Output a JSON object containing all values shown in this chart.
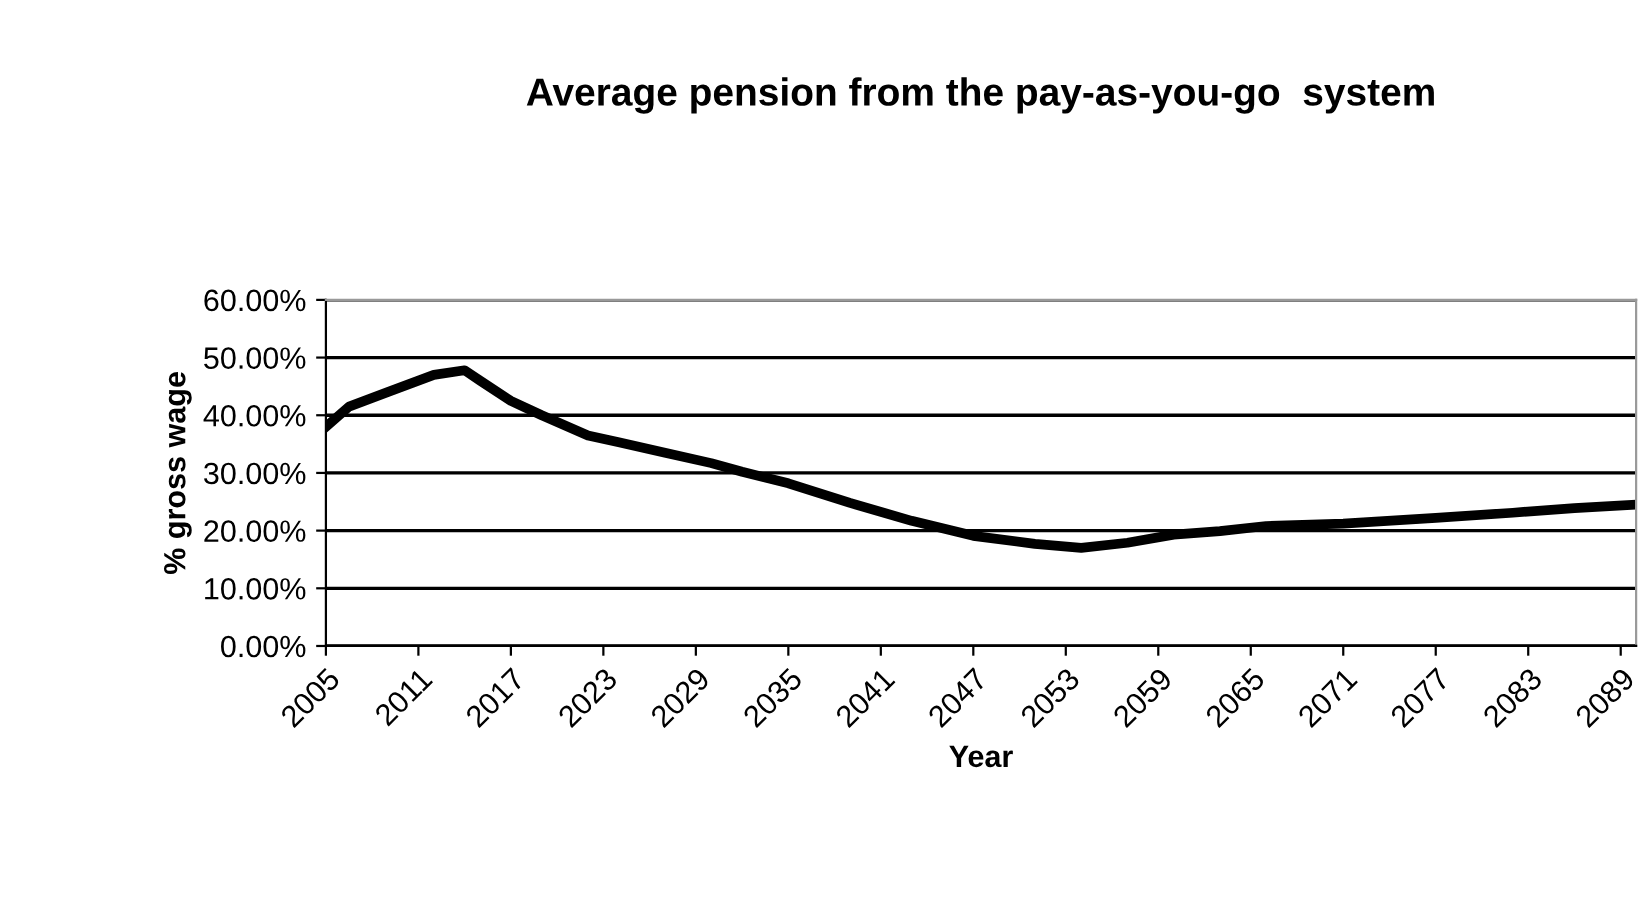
{
  "chart_data": {
    "type": "line",
    "title": "Average pension from the pay-as-you-go  system",
    "xlabel": "Year",
    "ylabel": "% gross wage",
    "x": [
      2005,
      2006.5,
      2009,
      2012,
      2014,
      2015,
      2017,
      2019,
      2022,
      2024,
      2027,
      2030,
      2032,
      2035,
      2039,
      2043,
      2047,
      2051,
      2054,
      2057,
      2060,
      2063,
      2066,
      2071,
      2077,
      2082,
      2086,
      2090
    ],
    "series": [
      {
        "color": "#000000",
        "values": [
          38.0,
          41.5,
          44,
          47,
          47.8,
          46,
          42.5,
          40,
          36.5,
          35.3,
          33.5,
          31.7,
          30.2,
          28.2,
          24.8,
          21.7,
          19.1,
          17.7,
          17,
          17.9,
          19.3,
          19.9,
          20.8,
          21.2,
          22.2,
          23.1,
          23.9,
          24.5
        ]
      }
    ],
    "xlim": [
      2005,
      2090
    ],
    "xticks": [
      {
        "value": 2005,
        "label": "2005"
      },
      {
        "value": 2011,
        "label": "2011"
      },
      {
        "value": 2017,
        "label": "2017"
      },
      {
        "value": 2023,
        "label": "2023"
      },
      {
        "value": 2029,
        "label": "2029"
      },
      {
        "value": 2035,
        "label": "2035"
      },
      {
        "value": 2041,
        "label": "2041"
      },
      {
        "value": 2047,
        "label": "2047"
      },
      {
        "value": 2053,
        "label": "2053"
      },
      {
        "value": 2059,
        "label": "2059"
      },
      {
        "value": 2065,
        "label": "2065"
      },
      {
        "value": 2071,
        "label": "2071"
      },
      {
        "value": 2077,
        "label": "2077"
      },
      {
        "value": 2083,
        "label": "2083"
      },
      {
        "value": 2089,
        "label": "2089"
      }
    ],
    "ylim": [
      0,
      60
    ],
    "yticks": [
      {
        "value": 0,
        "label": "0.00%"
      },
      {
        "value": 10,
        "label": "10.00%"
      },
      {
        "value": 20,
        "label": "20.00%"
      },
      {
        "value": 30,
        "label": "30.00%"
      },
      {
        "value": 40,
        "label": "40.00%"
      },
      {
        "value": 50,
        "label": "50.00%"
      },
      {
        "value": 60,
        "label": "60.00%"
      }
    ],
    "grid": "y",
    "legend": false,
    "marker": "none",
    "line_style": "solid"
  }
}
